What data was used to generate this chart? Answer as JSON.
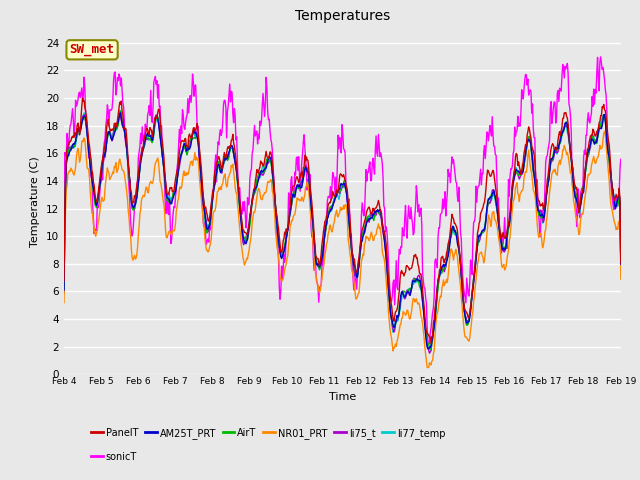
{
  "title": "Temperatures",
  "xlabel": "Time",
  "ylabel": "Temperature (C)",
  "ylim": [
    0,
    25
  ],
  "yticks": [
    0,
    2,
    4,
    6,
    8,
    10,
    12,
    14,
    16,
    18,
    20,
    22,
    24
  ],
  "xtick_labels": [
    "Feb 4",
    "Feb 5",
    "Feb 6",
    "Feb 7",
    "Feb 8",
    "Feb 9",
    "Feb 10",
    "Feb 11",
    "Feb 12",
    "Feb 13",
    "Feb 14",
    "Feb 15",
    "Feb 16",
    "Feb 17",
    "Feb 18",
    "Feb 19"
  ],
  "series": {
    "PanelT": {
      "color": "#cc0000",
      "lw": 1.0
    },
    "AM25T_PRT": {
      "color": "#0000cc",
      "lw": 1.0
    },
    "AirT": {
      "color": "#00bb00",
      "lw": 1.0
    },
    "NR01_PRT": {
      "color": "#ff8800",
      "lw": 1.0
    },
    "li75_t": {
      "color": "#aa00cc",
      "lw": 1.0
    },
    "li77_temp": {
      "color": "#00cccc",
      "lw": 1.0
    },
    "sonicT": {
      "color": "#ff00ff",
      "lw": 1.0
    }
  },
  "annotation_text": "SW_met",
  "annotation_color": "#cc0000",
  "annotation_bg": "#ffffcc",
  "annotation_border": "#888800",
  "bg_color": "#e8e8e8",
  "plot_bg": "#e8e8e8",
  "n_points": 720
}
